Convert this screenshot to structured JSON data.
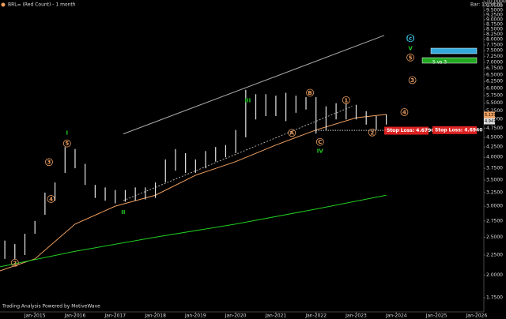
{
  "chart_data": {
    "type": "ohlc",
    "title": "BRL= (Red Count) - 1 month",
    "status": "Bar: 15:54:05",
    "footer": "Trading Analysis Powered by MotiveWave",
    "log_scale": true,
    "ylim": [
      1.61,
      10.1
    ],
    "xlim": [
      2014.13,
      2026.18
    ],
    "yticks": [
      {
        "value": 1.75,
        "label": "1.7500"
      },
      {
        "value": 2,
        "label": "2.0000"
      },
      {
        "value": 2.25,
        "label": "2.2500"
      },
      {
        "value": 2.5,
        "label": "2.5000"
      },
      {
        "value": 2.75,
        "label": "2.7500"
      },
      {
        "value": 3,
        "label": "3.0000"
      },
      {
        "value": 3.25,
        "label": "3.2500"
      },
      {
        "value": 3.5,
        "label": "3.5000"
      },
      {
        "value": 3.75,
        "label": "3.7500"
      },
      {
        "value": 4,
        "label": "4.0000"
      },
      {
        "value": 4.25,
        "label": "4.2500"
      },
      {
        "value": 4.5,
        "label": "4.5000"
      },
      {
        "value": 4.75,
        "label": "4.7500"
      },
      {
        "value": 5,
        "label": "5.0000"
      },
      {
        "value": 5.25,
        "label": "5.2500"
      },
      {
        "value": 5.5,
        "label": "5.5000"
      },
      {
        "value": 5.75,
        "label": "5.7500"
      },
      {
        "value": 6,
        "label": "6.0000"
      },
      {
        "value": 6.25,
        "label": "6.2500"
      },
      {
        "value": 6.5,
        "label": "6.5000"
      },
      {
        "value": 6.75,
        "label": "6.7500"
      },
      {
        "value": 7,
        "label": "7.0000"
      },
      {
        "value": 7.25,
        "label": "7.2500"
      },
      {
        "value": 7.5,
        "label": "7.5000"
      },
      {
        "value": 7.75,
        "label": "7.7500"
      },
      {
        "value": 8,
        "label": "8.0000"
      },
      {
        "value": 8.25,
        "label": "8.2500"
      },
      {
        "value": 8.5,
        "label": "8.5000"
      },
      {
        "value": 8.75,
        "label": "8.7500"
      },
      {
        "value": 9,
        "label": "9.0000"
      },
      {
        "value": 9.25,
        "label": "9.2500"
      },
      {
        "value": 9.5,
        "label": "9.5000"
      },
      {
        "value": 9.75,
        "label": "9.7500"
      },
      {
        "value": 10,
        "label": "10.0000"
      }
    ],
    "xticks": [
      {
        "value": 2015,
        "label": "Jan-2015"
      },
      {
        "value": 2016,
        "label": "Jan-2016"
      },
      {
        "value": 2017,
        "label": "Jan-2017"
      },
      {
        "value": 2018,
        "label": "Jan-2018"
      },
      {
        "value": 2019,
        "label": "Jan-2019"
      },
      {
        "value": 2020,
        "label": "Jan-2020"
      },
      {
        "value": 2021,
        "label": "Jan-2021"
      },
      {
        "value": 2022,
        "label": "Jan-2022"
      },
      {
        "value": 2023,
        "label": "Jan-2023"
      },
      {
        "value": 2024,
        "label": "Jan-2024"
      },
      {
        "value": 2025,
        "label": "Jan-2025"
      },
      {
        "value": 2026,
        "label": "Jan-2026"
      }
    ],
    "bar_color": "#e6e6e6",
    "x": [
      2014.25,
      2014.5,
      2014.75,
      2015,
      2015.25,
      2015.5,
      2015.75,
      2016,
      2016.25,
      2016.5,
      2016.75,
      2017,
      2017.25,
      2017.5,
      2017.75,
      2018,
      2018.25,
      2018.5,
      2018.75,
      2019,
      2019.25,
      2019.5,
      2019.75,
      2020,
      2020.25,
      2020.5,
      2020.75,
      2021,
      2021.25,
      2021.5,
      2021.75,
      2022,
      2022.25,
      2022.5,
      2022.75,
      2023,
      2023.25,
      2023.5,
      2023.75
    ],
    "high": [
      2.45,
      2.4,
      2.55,
      2.75,
      3.25,
      3.45,
      4.25,
      4.2,
      3.85,
      3.4,
      3.35,
      3.3,
      3.3,
      3.35,
      3.35,
      3.45,
      3.95,
      4.2,
      4.1,
      3.95,
      4.15,
      4.25,
      4.3,
      4.7,
      5.95,
      5.8,
      5.8,
      5.75,
      5.85,
      5.75,
      5.7,
      5.7,
      5.4,
      5.5,
      5.5,
      5.45,
      5.25,
      5.1,
      5.15
    ],
    "low": [
      2.2,
      2.2,
      2.25,
      2.55,
      2.85,
      3.1,
      3.65,
      3.75,
      3.4,
      3.15,
      3.1,
      3.05,
      3.08,
      3.1,
      3.12,
      3.15,
      3.45,
      3.7,
      3.65,
      3.65,
      3.75,
      3.9,
      4.0,
      4.1,
      4.5,
      5.0,
      5.1,
      5.1,
      4.95,
      5.2,
      5.3,
      4.6,
      4.7,
      5.0,
      5.0,
      5.0,
      4.85,
      4.7,
      4.85
    ],
    "series": [
      {
        "color": "#f0a060",
        "x": [
          2014.13,
          2015,
          2016,
          2017,
          2018,
          2019,
          2020,
          2021,
          2022,
          2023,
          2023.75
        ],
        "values": [
          2.05,
          2.2,
          2.7,
          3.0,
          3.2,
          3.6,
          3.9,
          4.3,
          4.7,
          5.05,
          5.15
        ]
      },
      {
        "color": "#22cc22",
        "x": [
          2014.13,
          2016,
          2018,
          2020,
          2022,
          2023.75
        ],
        "values": [
          2.1,
          2.3,
          2.5,
          2.7,
          2.95,
          3.2
        ]
      }
    ],
    "trendlines": [
      {
        "x": [
          2017.2,
          2023.7
        ],
        "values": [
          4.59,
          8.2
        ],
        "color": "#aaaaaa"
      },
      {
        "x": [
          2017.2,
          2022.9
        ],
        "values": [
          3.1,
          5.4
        ],
        "color": "#aaaaaa"
      }
    ],
    "waves": [
      {
        "text": "2",
        "x": 2014.5,
        "y": 2.15,
        "color": "#f0a060",
        "circled": true
      },
      {
        "text": "3",
        "x": 2015.35,
        "y": 3.89,
        "color": "#f0a060",
        "circled": true
      },
      {
        "text": "4",
        "x": 2015.4,
        "y": 3.13,
        "color": "#f0a060",
        "circled": true
      },
      {
        "text": "5",
        "x": 2015.8,
        "y": 4.34,
        "color": "#f0a060",
        "circled": true
      },
      {
        "text": "I",
        "x": 2015.8,
        "y": 4.62,
        "color": "#22cc22",
        "circled": false
      },
      {
        "text": "II",
        "x": 2017.2,
        "y": 2.9,
        "color": "#22cc22",
        "circled": false
      },
      {
        "text": "III",
        "x": 2020.3,
        "y": 5.6,
        "color": "#22cc22",
        "circled": false
      },
      {
        "text": "A",
        "x": 2021.4,
        "y": 4.62,
        "color": "#f0a060",
        "circled": true
      },
      {
        "text": "B",
        "x": 2021.85,
        "y": 5.85,
        "color": "#f0a060",
        "circled": true
      },
      {
        "text": "C",
        "x": 2022.1,
        "y": 4.38,
        "color": "#f0a060",
        "circled": true
      },
      {
        "text": "IV",
        "x": 2022.1,
        "y": 4.16,
        "color": "#22cc22",
        "circled": false
      },
      {
        "text": "1",
        "x": 2022.75,
        "y": 5.6,
        "color": "#f0a060",
        "circled": true
      },
      {
        "text": "2",
        "x": 2023.4,
        "y": 4.63,
        "color": "#f0a060",
        "circled": true
      },
      {
        "text": "3",
        "x": 2024.4,
        "y": 6.3,
        "color": "#f0a060",
        "circled": true
      },
      {
        "text": "4",
        "x": 2024.2,
        "y": 5.22,
        "color": "#f0a060",
        "circled": true
      },
      {
        "text": "5",
        "x": 2024.35,
        "y": 7.2,
        "color": "#f0a060",
        "circled": true
      },
      {
        "text": "V",
        "x": 2024.35,
        "y": 7.6,
        "color": "#22cc22",
        "circled": false
      },
      {
        "text": "(c)",
        "x": 2024.35,
        "y": 8.07,
        "color": "#33bbdd",
        "circled": true
      }
    ],
    "stops": [
      {
        "value": 4.679,
        "label": "Stop Loss: 4.6790",
        "x": 2023.7
      },
      {
        "value": 4.694,
        "label": "Stop Loss: 4.6940",
        "x": 2024.9
      }
    ],
    "note": {
      "text": "5 vs 3",
      "x": 2024.9,
      "y": 7.0
    },
    "price_tags": [
      {
        "value": 5.1371,
        "color": "#f0a060"
      },
      {
        "value": 4.9471,
        "color": "#dddddd"
      }
    ]
  }
}
